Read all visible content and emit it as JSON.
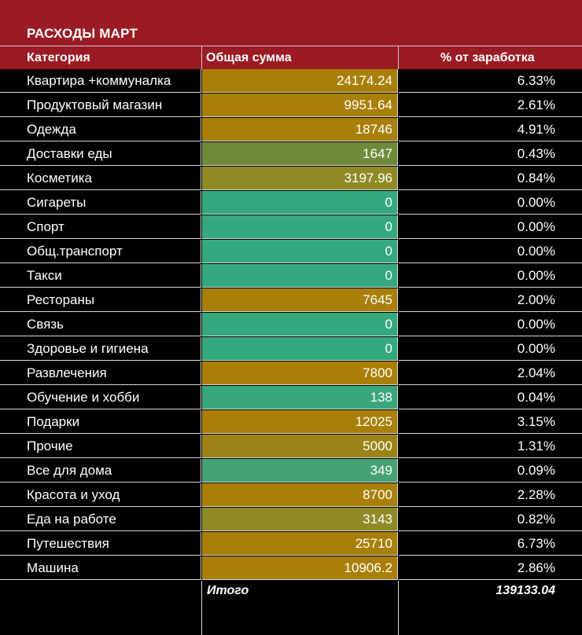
{
  "title": "РАСХОДЫ МАРТ",
  "headers": {
    "category": "Категория",
    "amount": "Общая сумма",
    "percent": "% от заработка"
  },
  "colors": {
    "header_bg": "#9b1b24",
    "large_expense": "#a97f08",
    "medium_expense": "#8c8a2a",
    "small_expense": "#6e8a3a",
    "low_expense": "#3fa37d",
    "zero_expense": "#2fa97f"
  },
  "rows": [
    {
      "category": "Квартира +коммуналка",
      "amount": "24174.24",
      "percent": "6.33%",
      "color": "#a97f08"
    },
    {
      "category": "Продуктовый магазин",
      "amount": "9951.64",
      "percent": "2.61%",
      "color": "#a97f08"
    },
    {
      "category": "Одежда",
      "amount": "18746",
      "percent": "4.91%",
      "color": "#a97f08"
    },
    {
      "category": "Доставки еды",
      "amount": "1647",
      "percent": "0.43%",
      "color": "#6e8a3a"
    },
    {
      "category": "Косметика",
      "amount": "3197.96",
      "percent": "0.84%",
      "color": "#8f8a26"
    },
    {
      "category": "Сигареты",
      "amount": "0",
      "percent": "0.00%",
      "color": "#35a97e"
    },
    {
      "category": "Спорт",
      "amount": "0",
      "percent": "0.00%",
      "color": "#35a97e"
    },
    {
      "category": "Общ.транспорт",
      "amount": "0",
      "percent": "0.00%",
      "color": "#35a97e"
    },
    {
      "category": "Такси",
      "amount": "0",
      "percent": "0.00%",
      "color": "#35a97e"
    },
    {
      "category": "Рестораны",
      "amount": "7645",
      "percent": "2.00%",
      "color": "#a97f08"
    },
    {
      "category": "Связь",
      "amount": "0",
      "percent": "0.00%",
      "color": "#35a97e"
    },
    {
      "category": "Здоровье и гигиена",
      "amount": "0",
      "percent": "0.00%",
      "color": "#35a97e"
    },
    {
      "category": "Развлечения",
      "amount": "7800",
      "percent": "2.04%",
      "color": "#a97f08"
    },
    {
      "category": "Обучение и хобби",
      "amount": "138",
      "percent": "0.04%",
      "color": "#3aa67c"
    },
    {
      "category": "Подарки",
      "amount": "12025",
      "percent": "3.15%",
      "color": "#a97f08"
    },
    {
      "category": "Прочие",
      "amount": "5000",
      "percent": "1.31%",
      "color": "#9c8318"
    },
    {
      "category": "Все для дома",
      "amount": "349",
      "percent": "0.09%",
      "color": "#46a174"
    },
    {
      "category": "Красота и уход",
      "amount": "8700",
      "percent": "2.28%",
      "color": "#a97f08"
    },
    {
      "category": "Еда на работе",
      "amount": "3143",
      "percent": "0.82%",
      "color": "#8f8a26"
    },
    {
      "category": "Путешествия",
      "amount": "25710",
      "percent": "6.73%",
      "color": "#a97f08"
    },
    {
      "category": "Машина",
      "amount": "10906.2",
      "percent": "2.86%",
      "color": "#a97f08"
    }
  ],
  "total": {
    "label": "Итого",
    "value": "139133.04"
  }
}
